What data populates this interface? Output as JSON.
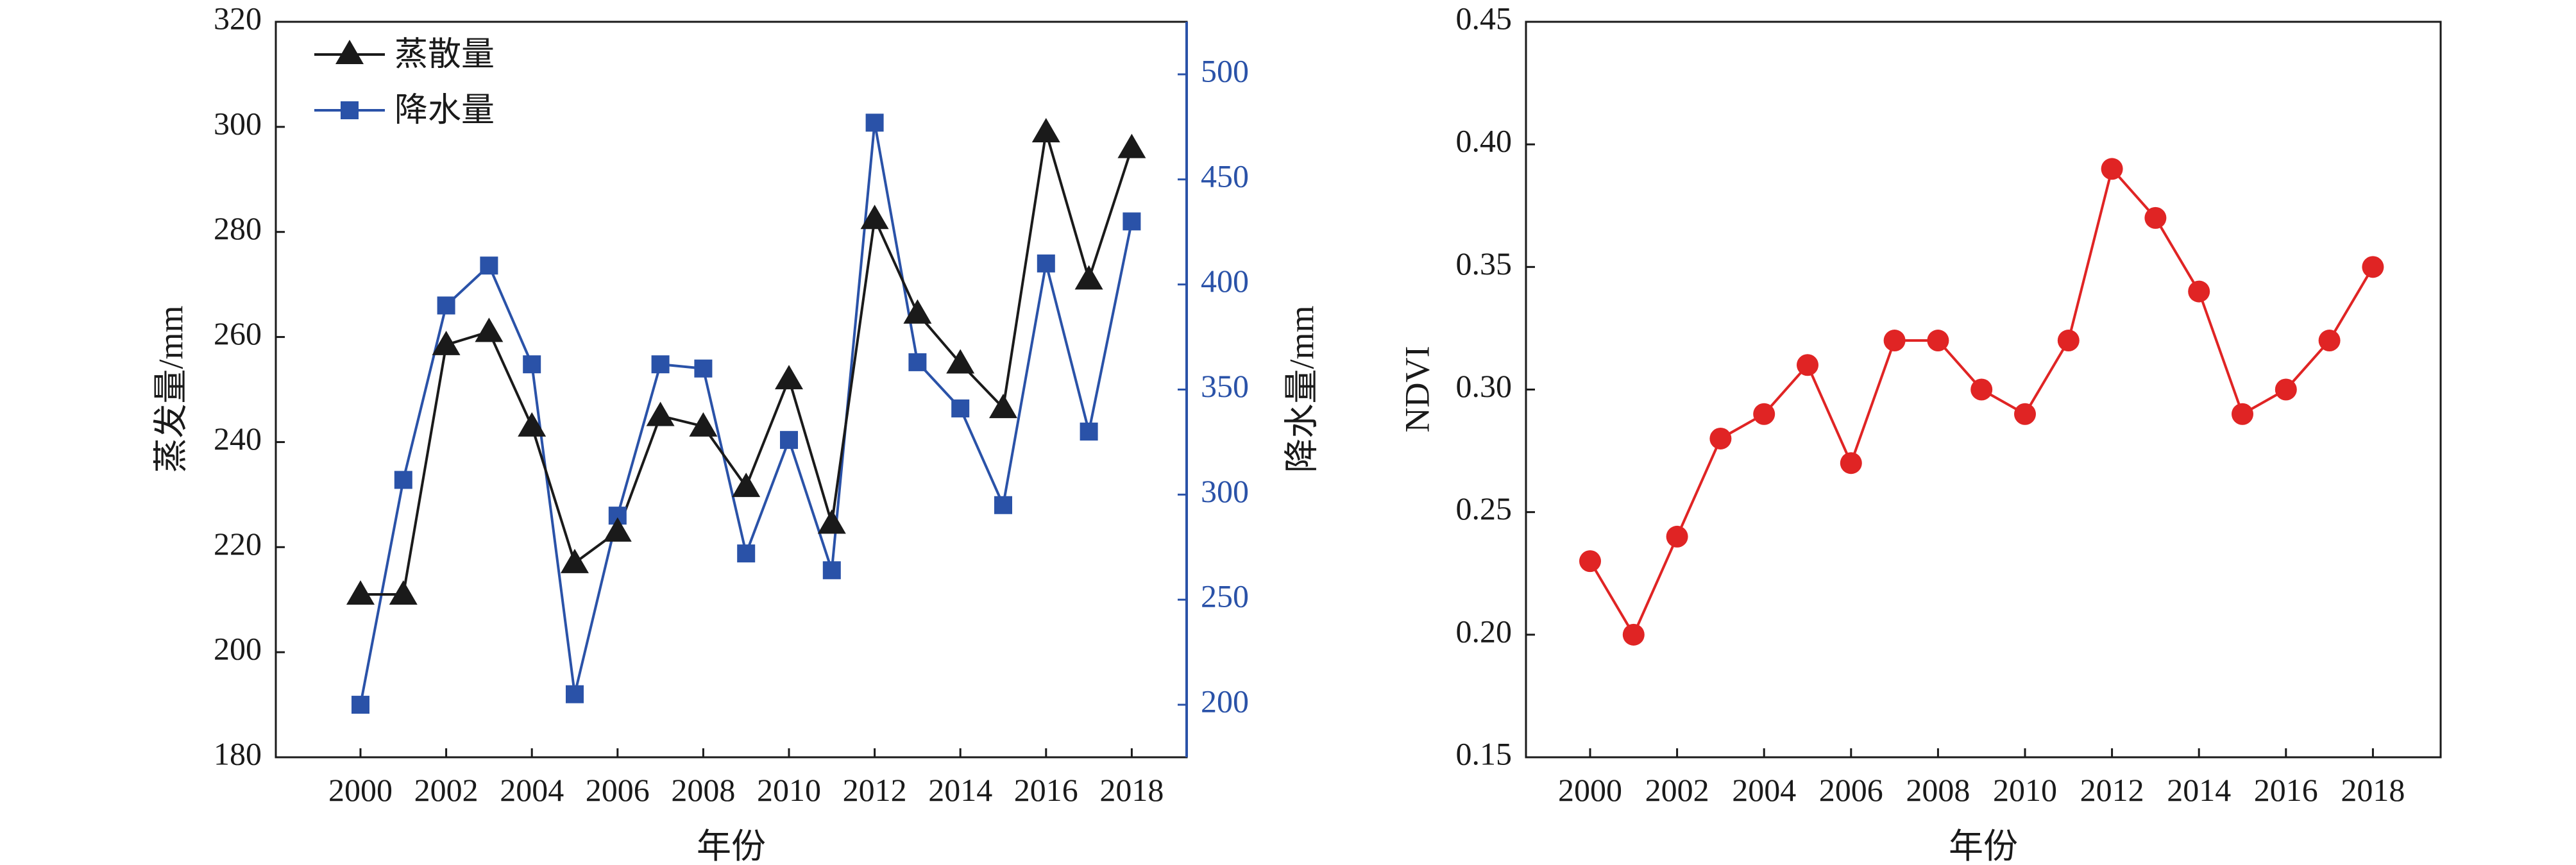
{
  "chart_data": [
    {
      "type": "line",
      "xlabel": "年份",
      "ylabel_left": "蒸发量/mm",
      "ylabel_right": "降水量/mm",
      "x": [
        2000,
        2001,
        2002,
        2003,
        2004,
        2005,
        2006,
        2007,
        2008,
        2009,
        2010,
        2011,
        2012,
        2013,
        2014,
        2015,
        2016,
        2017,
        2018
      ],
      "x_ticks": [
        "2000",
        "2002",
        "2004",
        "2006",
        "2008",
        "2010",
        "2012",
        "2014",
        "2016",
        "2018"
      ],
      "ylim_left": [
        180,
        320
      ],
      "y_ticks_left": [
        "180",
        "200",
        "220",
        "240",
        "260",
        "280",
        "300",
        "320"
      ],
      "ylim_right": [
        175,
        525
      ],
      "y_ticks_right": [
        "200",
        "250",
        "300",
        "350",
        "400",
        "450",
        "500"
      ],
      "legend_position": "top-left",
      "series": [
        {
          "name": "蒸散量",
          "axis": "left",
          "color": "#1a1a1a",
          "marker": "triangle",
          "values": [
            211,
            211,
            258.5,
            261,
            243,
            217,
            223,
            245,
            243,
            231.5,
            252,
            224.5,
            282.5,
            264.5,
            255,
            246.5,
            299,
            271,
            296
          ]
        },
        {
          "name": "降水量",
          "axis": "right",
          "color": "#2a52a8",
          "marker": "square",
          "values": [
            200,
            307,
            390,
            409,
            362,
            205,
            290,
            362,
            360,
            272,
            326,
            264,
            477,
            363,
            341,
            295,
            410,
            330,
            430
          ]
        }
      ]
    },
    {
      "type": "line",
      "xlabel": "年份",
      "ylabel": "NDVI",
      "x": [
        2000,
        2001,
        2002,
        2003,
        2004,
        2005,
        2006,
        2007,
        2008,
        2009,
        2010,
        2011,
        2012,
        2013,
        2014,
        2015,
        2016,
        2017,
        2018
      ],
      "x_ticks": [
        "2000",
        "2002",
        "2004",
        "2006",
        "2008",
        "2010",
        "2012",
        "2014",
        "2016",
        "2018"
      ],
      "ylim": [
        0.15,
        0.45
      ],
      "y_ticks": [
        "0.15",
        "0.20",
        "0.25",
        "0.30",
        "0.35",
        "0.40",
        "0.45"
      ],
      "series": [
        {
          "color": "#e02424",
          "marker": "circle",
          "values": [
            0.23,
            0.2,
            0.24,
            0.28,
            0.29,
            0.31,
            0.27,
            0.32,
            0.32,
            0.3,
            0.29,
            0.32,
            0.39,
            0.37,
            0.34,
            0.29,
            0.3,
            0.32,
            0.35
          ]
        }
      ]
    }
  ]
}
